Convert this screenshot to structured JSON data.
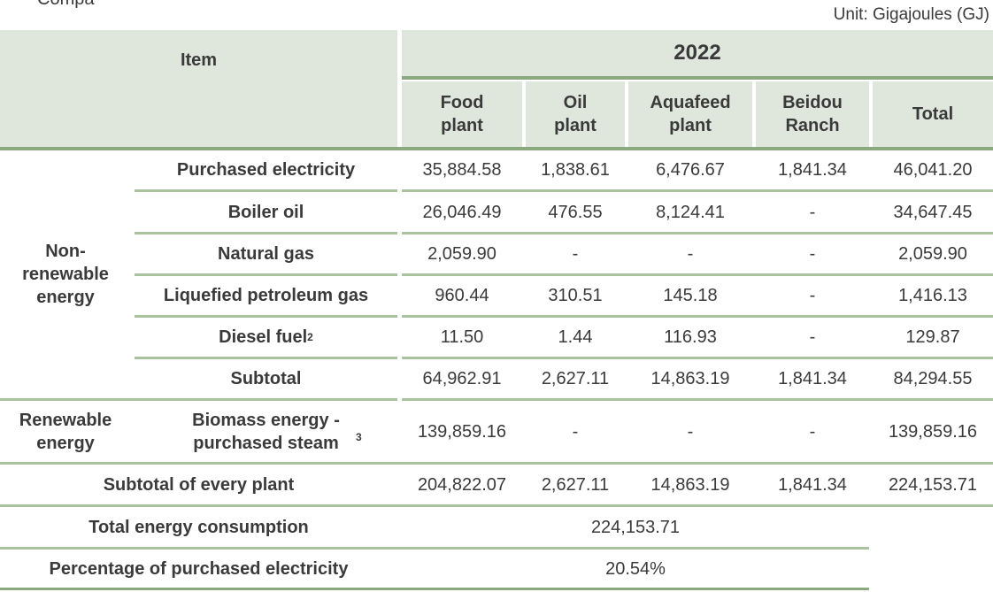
{
  "top_cut_text": "Compa",
  "unit": "Unit: Gigajoules (GJ)",
  "header": {
    "item": "Item",
    "year": "2022",
    "columns": [
      "Food plant",
      "Oil plant",
      "Aquafeed plant",
      "Beidou Ranch",
      "Total"
    ]
  },
  "groups": {
    "nonrenewable": "Non-renewable energy",
    "renewable": "Renewable energy"
  },
  "rows": [
    {
      "label": "Purchased electricity",
      "sup": "",
      "values": [
        "35,884.58",
        "1,838.61",
        "6,476.67",
        "1,841.34",
        "46,041.20"
      ]
    },
    {
      "label": "Boiler oil",
      "sup": "",
      "values": [
        "26,046.49",
        "476.55",
        "8,124.41",
        "-",
        "34,647.45"
      ]
    },
    {
      "label": "Natural gas",
      "sup": "",
      "values": [
        "2,059.90",
        "-",
        "-",
        "-",
        "2,059.90"
      ]
    },
    {
      "label": "Liquefied petroleum gas",
      "sup": "",
      "values": [
        "960.44",
        "310.51",
        "145.18",
        "-",
        "1,416.13"
      ]
    },
    {
      "label": "Diesel fuel",
      "sup": "2",
      "values": [
        "11.50",
        "1.44",
        "116.93",
        "-",
        "129.87"
      ]
    },
    {
      "label": "Subtotal",
      "sup": "",
      "values": [
        "64,962.91",
        "2,627.11",
        "14,863.19",
        "1,841.34",
        "84,294.55"
      ]
    },
    {
      "label": "Biomass energy - purchased steam",
      "sup": "3",
      "values": [
        "139,859.16",
        "-",
        "-",
        "-",
        "139,859.16"
      ]
    }
  ],
  "subtotal_every_plant": {
    "label": "Subtotal of every plant",
    "values": [
      "204,822.07",
      "2,627.11",
      "14,863.19",
      "1,841.34",
      "224,153.71"
    ]
  },
  "total_energy": {
    "label": "Total energy consumption",
    "value": "224,153.71"
  },
  "pct_electricity": {
    "label": "Percentage of purchased electricity",
    "value": "20.54%"
  }
}
